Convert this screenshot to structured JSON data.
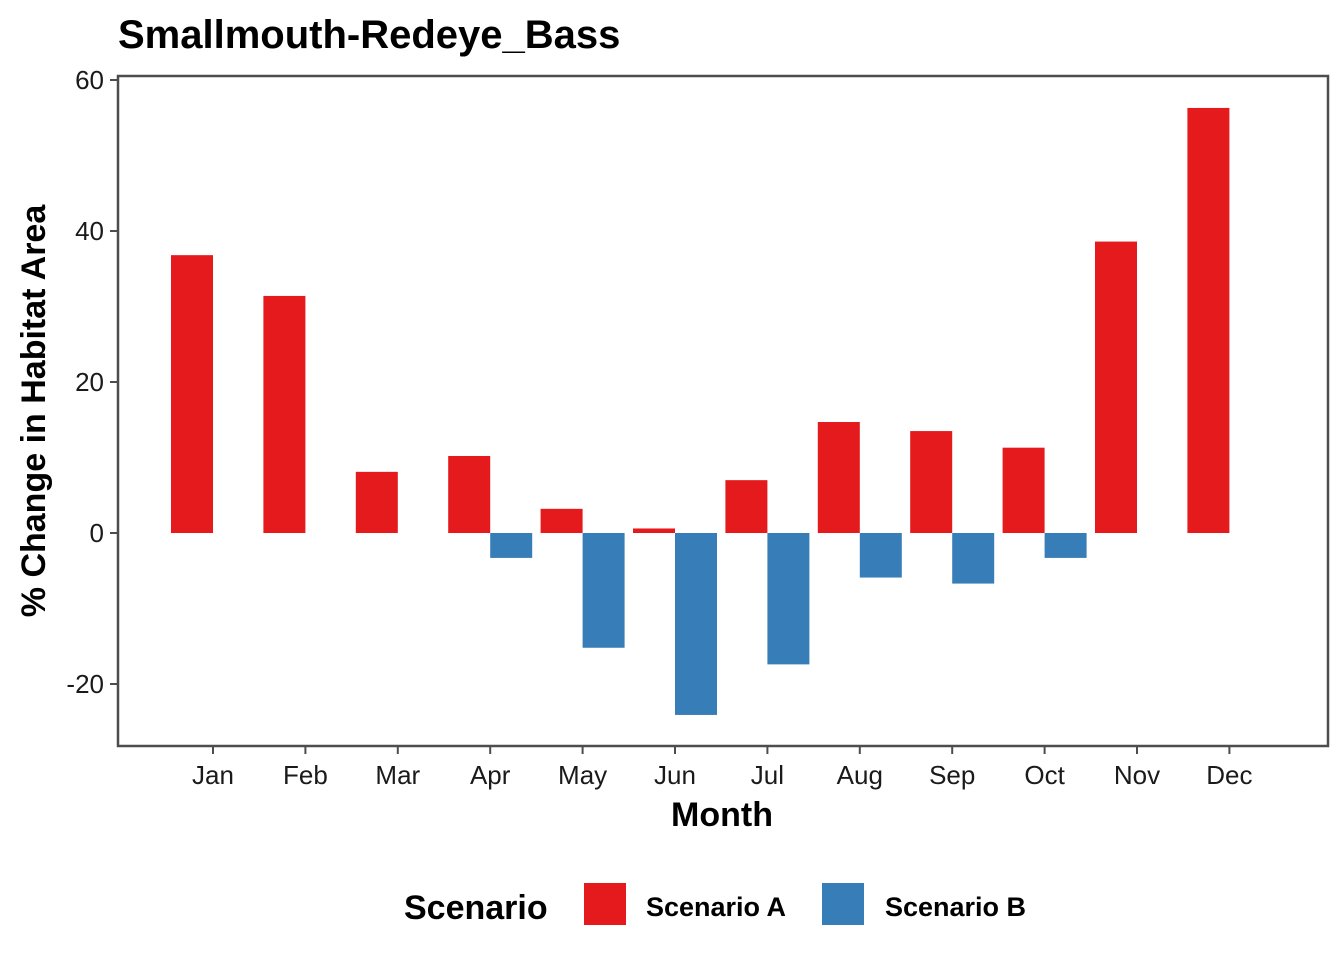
{
  "chart_data": {
    "type": "bar",
    "title": "Smallmouth-Redeye_Bass",
    "xlabel": "Month",
    "ylabel": "% Change in Habitat Area",
    "categories": [
      "Jan",
      "Feb",
      "Mar",
      "Apr",
      "May",
      "Jun",
      "Jul",
      "Aug",
      "Sep",
      "Oct",
      "Nov",
      "Dec"
    ],
    "series": [
      {
        "name": "Scenario A",
        "color": "#e41a1c",
        "values": [
          36.8,
          31.4,
          8.1,
          10.2,
          3.2,
          0.6,
          7.0,
          14.7,
          13.5,
          11.3,
          38.6,
          56.3
        ]
      },
      {
        "name": "Scenario B",
        "color": "#377eb8",
        "values": [
          0,
          0,
          0,
          -3.3,
          -15.2,
          -24.1,
          -17.4,
          -5.9,
          -6.7,
          -3.3,
          0,
          0
        ]
      }
    ],
    "ylim": [
      -28,
      60
    ],
    "yticks": [
      -20,
      0,
      20,
      40,
      60
    ],
    "grid": false,
    "legend": {
      "title": "Scenario",
      "position": "bottom"
    }
  }
}
